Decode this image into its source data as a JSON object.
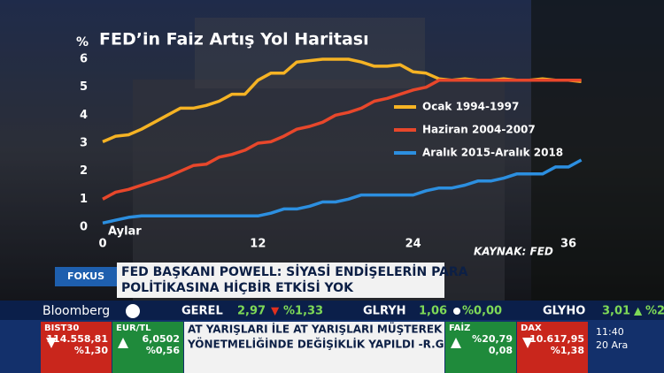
{
  "chart_data": {
    "type": "line",
    "title": "FED’in Faiz Artış Yol Haritası",
    "y_label": "%",
    "x_label": "Aylar",
    "source": "KAYNAK: FED",
    "x": [
      0,
      1,
      2,
      3,
      4,
      5,
      6,
      7,
      8,
      9,
      10,
      11,
      12,
      13,
      14,
      15,
      16,
      17,
      18,
      19,
      20,
      21,
      22,
      23,
      24,
      25,
      26,
      27,
      28,
      29,
      30,
      31,
      32,
      33,
      34,
      35,
      36,
      37
    ],
    "xlim": [
      0,
      38
    ],
    "xticks": [
      0,
      12,
      24,
      36
    ],
    "ylim": [
      0,
      6
    ],
    "yticks": [
      0,
      1,
      2,
      3,
      4,
      5,
      6
    ],
    "series": [
      {
        "name": "Ocak 1994-1997",
        "color": "#f5b324",
        "values": [
          3.05,
          3.25,
          3.3,
          3.5,
          3.75,
          4.0,
          4.25,
          4.25,
          4.35,
          4.5,
          4.75,
          4.75,
          5.25,
          5.5,
          5.5,
          5.9,
          5.95,
          6.0,
          6.0,
          6.0,
          5.9,
          5.75,
          5.75,
          5.8,
          5.55,
          5.5,
          5.3,
          5.25,
          5.3,
          5.25,
          5.25,
          5.3,
          5.25,
          5.25,
          5.3,
          5.25,
          5.25,
          5.2
        ]
      },
      {
        "name": "Haziran 2004-2007",
        "color": "#e8472b",
        "values": [
          1.0,
          1.25,
          1.35,
          1.5,
          1.65,
          1.8,
          2.0,
          2.2,
          2.25,
          2.5,
          2.6,
          2.75,
          3.0,
          3.05,
          3.25,
          3.5,
          3.6,
          3.75,
          4.0,
          4.1,
          4.25,
          4.5,
          4.6,
          4.75,
          4.9,
          5.0,
          5.25,
          5.25,
          5.25,
          5.25,
          5.25,
          5.25,
          5.25,
          5.25,
          5.25,
          5.25,
          5.25,
          5.25
        ]
      },
      {
        "name": "Aralık 2015-Aralık 2018",
        "color": "#2c8fe0",
        "values": [
          0.15,
          0.25,
          0.35,
          0.4,
          0.4,
          0.4,
          0.4,
          0.4,
          0.4,
          0.4,
          0.4,
          0.4,
          0.4,
          0.5,
          0.65,
          0.65,
          0.75,
          0.9,
          0.9,
          1.0,
          1.15,
          1.15,
          1.15,
          1.15,
          1.15,
          1.3,
          1.4,
          1.4,
          1.5,
          1.65,
          1.65,
          1.75,
          1.9,
          1.9,
          1.9,
          2.15,
          2.15,
          2.4
        ]
      }
    ]
  },
  "banner": {
    "tag": "FOKUS",
    "headline": [
      "FED BAŞKANI POWELL: SİYASİ ENDİŞELERİN PARA",
      "POLİTİKASINA HİÇBİR ETKİSİ YOK"
    ]
  },
  "ticker": {
    "logo": "Bloomberg",
    "top": [
      {
        "symbol": "GEREL",
        "price": "2,97",
        "change": "%1,33"
      },
      {
        "symbol": "GLRYH",
        "price": "1,06",
        "change": "%0,00"
      },
      {
        "symbol": "GLYHO",
        "price": "3,01",
        "change": "%2"
      }
    ],
    "bottom": [
      {
        "symbol": "BIST30",
        "value": "114.558,81",
        "change": "%1,30"
      },
      {
        "symbol": "EUR/TL",
        "value": "6,0502",
        "change": "%0,56"
      }
    ],
    "news": [
      "AT YARIŞLARI İLE AT YARIŞLARI MÜŞTEREK BAHİSLER",
      "YÖNETMELİĞİNDE DEĞİŞİKLİK YAPILDI -R.G."
    ],
    "right": [
      {
        "symbol": "FAİZ",
        "value": "%20,79",
        "change": "0,08"
      },
      {
        "symbol": "DAX",
        "value": "10.617,95",
        "change": "%1,38"
      }
    ],
    "time": "11:40",
    "date": "20 Ara"
  }
}
